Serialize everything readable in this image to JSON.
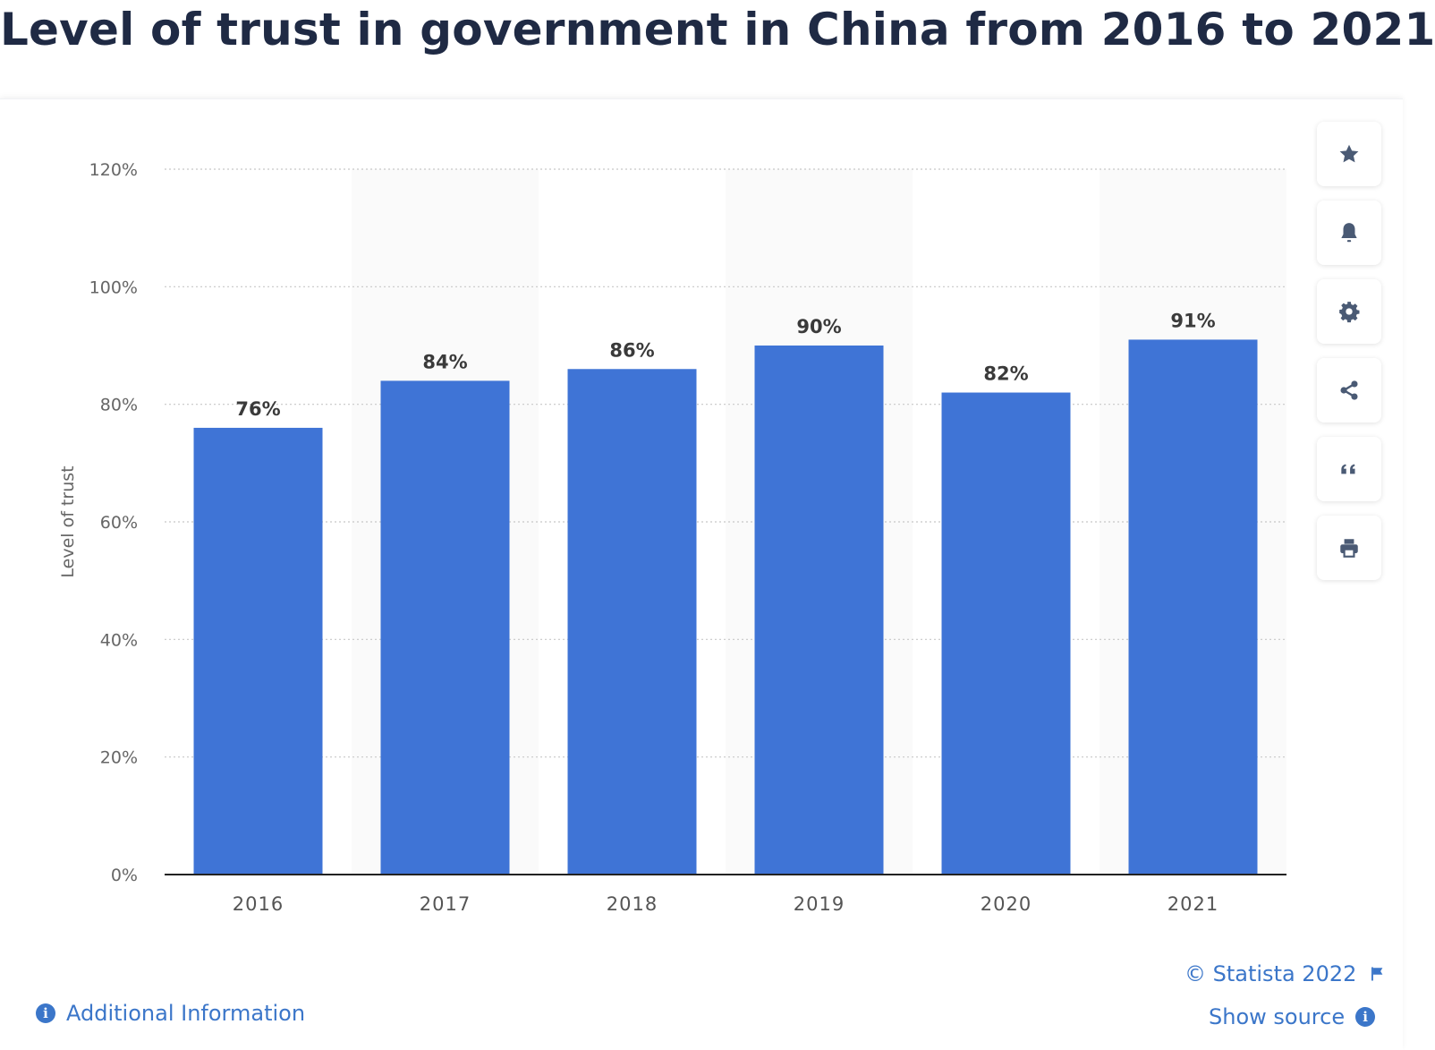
{
  "page": {
    "title": "Level of trust in government in China from 2016 to 2021"
  },
  "toolbar": {
    "buttons": [
      "star-icon",
      "bell-icon",
      "gear-icon",
      "share-icon",
      "quote-icon",
      "print-icon"
    ]
  },
  "footer": {
    "copyright": "© Statista 2022",
    "additional_info": "Additional Information",
    "show_source": "Show source"
  },
  "colors": {
    "bar": "#3f74d6",
    "title": "#1f2a44",
    "link": "#3b76c9",
    "icon": "#4a5a74"
  },
  "chart_data": {
    "type": "bar",
    "title": "Level of trust in government in China from 2016 to 2021",
    "categories": [
      "2016",
      "2017",
      "2018",
      "2019",
      "2020",
      "2021"
    ],
    "values": [
      76,
      84,
      86,
      90,
      82,
      91
    ],
    "data_labels": [
      "76%",
      "84%",
      "86%",
      "90%",
      "82%",
      "91%"
    ],
    "xlabel": "",
    "ylabel": "Level of trust",
    "ylim": [
      0,
      120
    ],
    "yticks": [
      0,
      20,
      40,
      60,
      80,
      100,
      120
    ],
    "ytick_labels": [
      "0%",
      "20%",
      "40%",
      "60%",
      "80%",
      "100%",
      "120%"
    ],
    "grid": true,
    "legend": "none"
  }
}
